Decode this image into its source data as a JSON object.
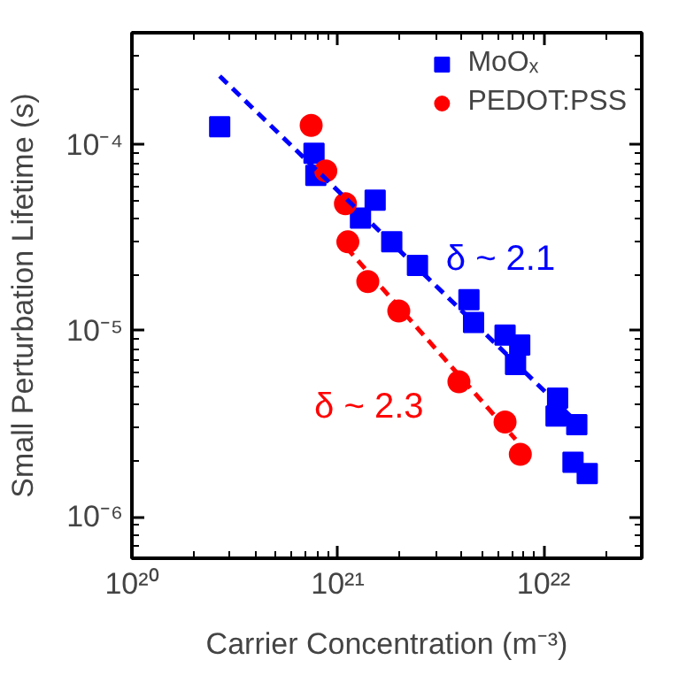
{
  "chart_data": {
    "type": "scatter",
    "xlabel": "Carrier Concentration (m⁻³)",
    "ylabel": "Small Perturbation Lifetime (s)",
    "log": "xy",
    "xlim": [
      1e+20,
      3e+22
    ],
    "xticks": [
      {
        "value": 1e+20,
        "label": "10²⁰"
      },
      {
        "value": 1e+21,
        "label": "10²¹"
      },
      {
        "value": 1e+22,
        "label": "10²²"
      }
    ],
    "ylim": [
      6e-07,
      0.0004
    ],
    "yticks": [
      {
        "value": 1e-06,
        "label": "10⁻⁶"
      },
      {
        "value": 1e-05,
        "label": "10⁻⁵"
      },
      {
        "value": 0.0001,
        "label": "10⁻⁴"
      }
    ],
    "legend": "top right",
    "grid": false,
    "series": [
      {
        "name": "MoOₓ",
        "color": "#0000ff",
        "marker": "square",
        "x": [
          2.67e+20,
          7.67e+20,
          7.83e+20,
          1.29e+21,
          1.52e+21,
          1.83e+21,
          2.44e+21,
          4.34e+21,
          4.57e+21,
          6.5e+21,
          7.66e+21,
          7.31e+21,
          1.17e+22,
          1.15e+22,
          1.45e+22,
          1.39e+22,
          1.63e+22
        ],
        "values": [
          0.000125,
          9e-05,
          6.84e-05,
          4.04e-05,
          5.04e-05,
          3.01e-05,
          2.25e-05,
          1.47e-05,
          1.11e-05,
          9.5e-06,
          8.4e-06,
          6.6e-06,
          4.35e-06,
          3.49e-06,
          3.13e-06,
          1.97e-06,
          1.71e-06
        ]
      },
      {
        "name": "PEDOT:PSS",
        "color": "#ff0000",
        "marker": "circle",
        "x": [
          7.43e+20,
          8.75e+20,
          1.09e+21,
          1.12e+21,
          1.4e+21,
          1.98e+21,
          3.88e+21,
          6.5e+21,
          7.71e+21
        ],
        "values": [
          0.000127,
          7.24e-05,
          4.82e-05,
          3.01e-05,
          1.84e-05,
          1.28e-05,
          5.33e-06,
          3.24e-06,
          2.17e-06
        ]
      },
      {
        "type": "line",
        "line_style": "dashed",
        "color": "#0000ff",
        "x": [
          2.67e+20,
          1.62e+22
        ],
        "values": [
          0.000234,
          2.86e-06
        ]
      },
      {
        "type": "line",
        "line_style": "dashed",
        "color": "#ff0000",
        "x": [
          1.1e+21,
          7.31e+21
        ],
        "values": [
          2.81e-05,
          2.61e-06
        ]
      }
    ],
    "annotations": [
      "δ ~ 2.1",
      "δ ~ 2.3"
    ]
  }
}
